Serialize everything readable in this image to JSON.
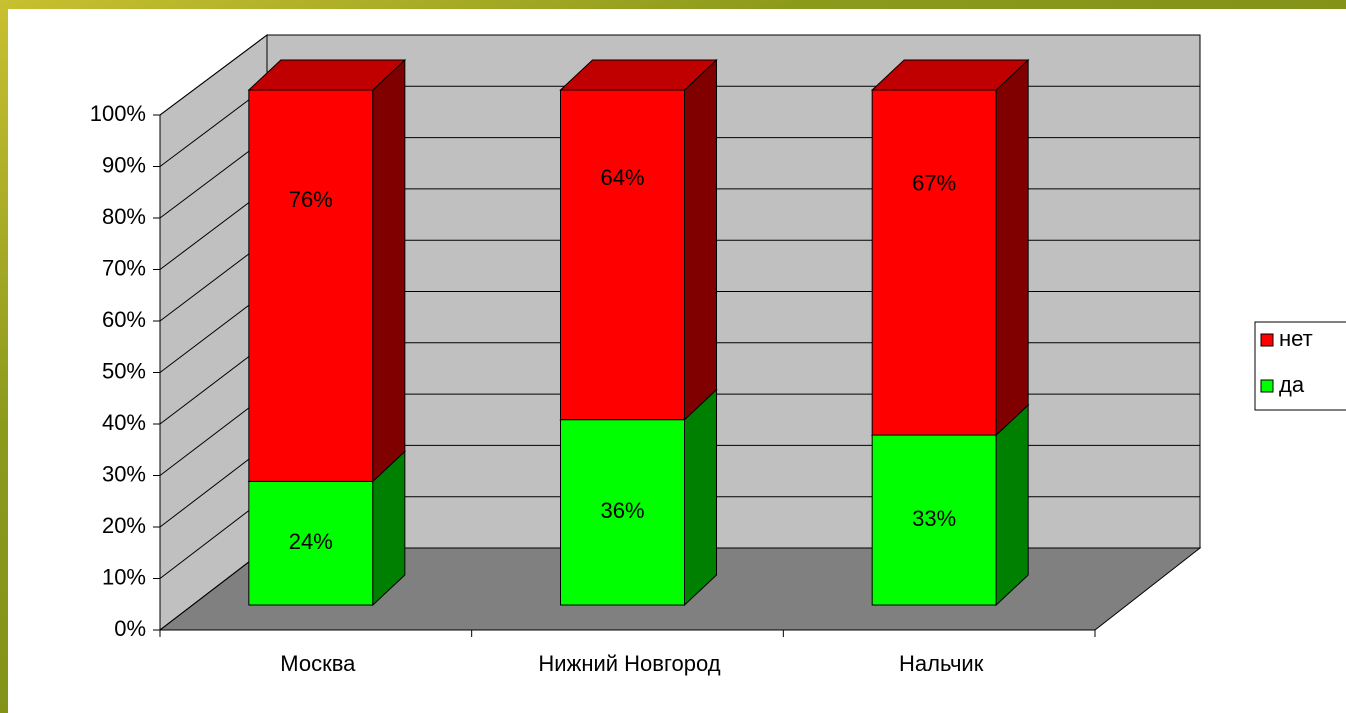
{
  "chart_data": {
    "type": "bar3d_stacked",
    "categories": [
      "Москва",
      "Нижний Новгород",
      "Нальчик"
    ],
    "series": [
      {
        "name": "да",
        "color": "#00ff00",
        "side_color": "#008000",
        "top_color": "#00c000",
        "values": [
          24,
          36,
          33
        ],
        "value_labels": [
          "24%",
          "36%",
          "33%"
        ]
      },
      {
        "name": "нет",
        "color": "#ff0000",
        "side_color": "#800000",
        "top_color": "#c00000",
        "values": [
          76,
          64,
          67
        ],
        "value_labels": [
          "76%",
          "64%",
          "67%"
        ]
      }
    ],
    "ylim": [
      0,
      100
    ],
    "yticks": [
      {
        "value": 0,
        "label": "0%"
      },
      {
        "value": 10,
        "label": "10%"
      },
      {
        "value": 20,
        "label": "20%"
      },
      {
        "value": 30,
        "label": "30%"
      },
      {
        "value": 40,
        "label": "40%"
      },
      {
        "value": 50,
        "label": "50%"
      },
      {
        "value": 60,
        "label": "60%"
      },
      {
        "value": 70,
        "label": "70%"
      },
      {
        "value": 80,
        "label": "80%"
      },
      {
        "value": 90,
        "label": "90%"
      },
      {
        "value": 100,
        "label": "100%"
      }
    ],
    "grid": true,
    "legend": "right"
  }
}
